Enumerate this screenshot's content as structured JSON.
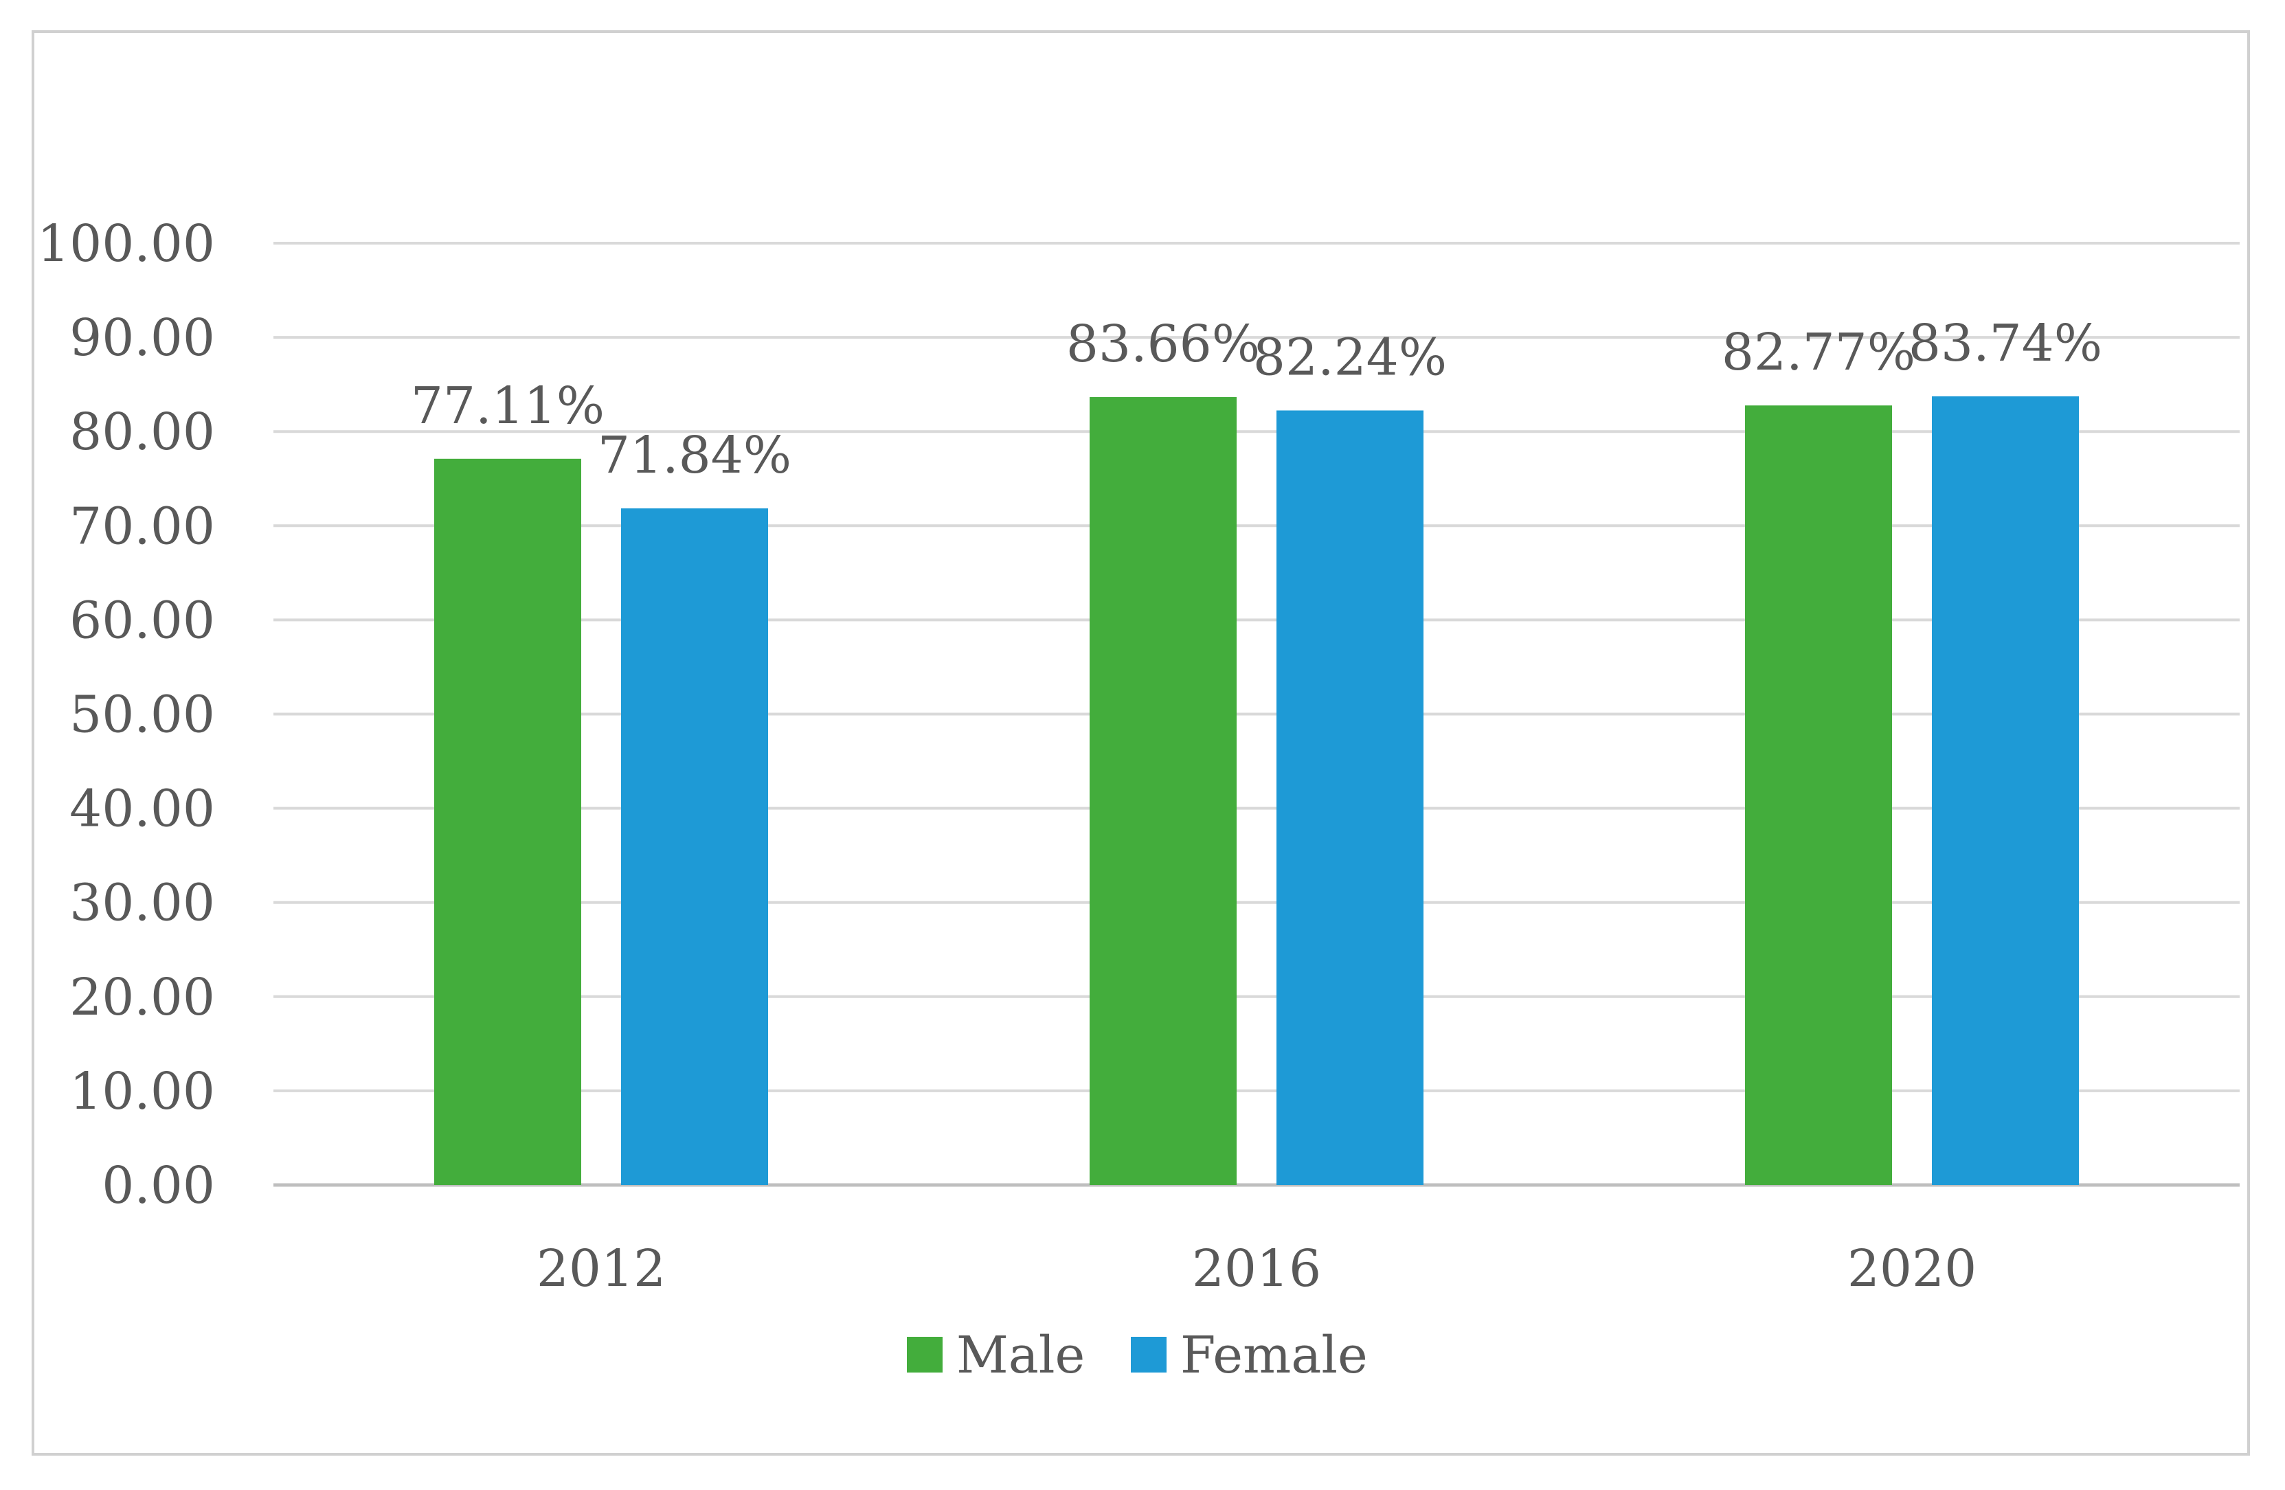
{
  "chart_data": {
    "type": "bar",
    "categories": [
      "2012",
      "2016",
      "2020"
    ],
    "series": [
      {
        "name": "Male",
        "values": [
          77.11,
          83.66,
          82.77
        ],
        "labels": [
          "77.11%",
          "83.66%",
          "82.77%"
        ],
        "color": "#43ad3c"
      },
      {
        "name": "Female",
        "values": [
          71.84,
          82.24,
          83.74
        ],
        "labels": [
          "71.84%",
          "82.24%",
          "83.74%"
        ],
        "color": "#1e9ad6"
      }
    ],
    "yticks": [
      "0.00",
      "10.00",
      "20.00",
      "30.00",
      "40.00",
      "50.00",
      "60.00",
      "70.00",
      "80.00",
      "90.00",
      "100.00"
    ],
    "ylim": [
      0,
      100
    ],
    "grid": true,
    "gridColor": "#d9d9d9",
    "legend": "bottom"
  }
}
